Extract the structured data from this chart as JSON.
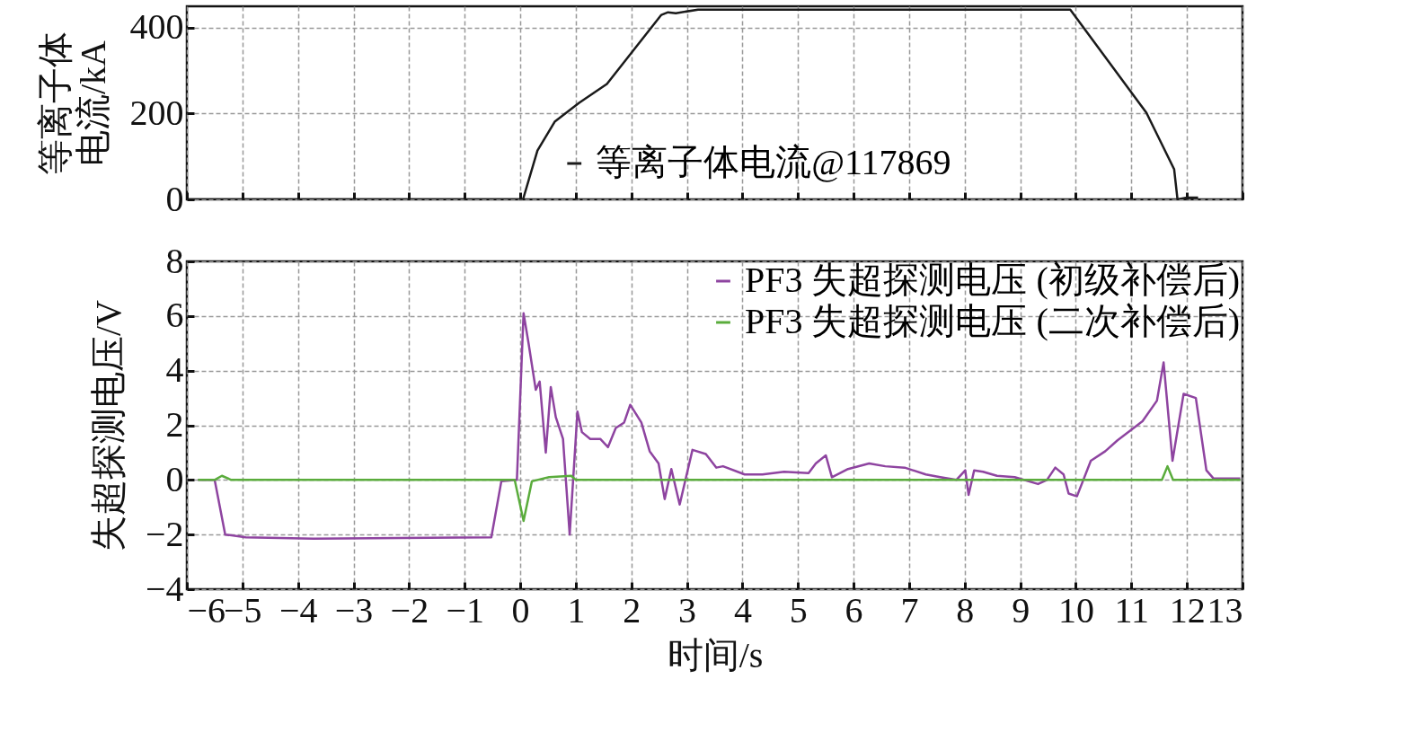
{
  "chart_data": [
    {
      "type": "line",
      "ylabel": "等离子体电流/kA",
      "xlim": [
        -6,
        13
      ],
      "xticks": [
        -6,
        -5,
        -4,
        -3,
        -2,
        -1,
        0,
        1,
        2,
        3,
        4,
        5,
        6,
        7,
        8,
        9,
        10,
        11,
        12,
        13
      ],
      "ylim": [
        0,
        450
      ],
      "yticks": [
        0,
        200,
        400
      ],
      "tick_labels": "y",
      "grid": true,
      "legend": "bottom",
      "series": [
        {
          "name": "等离子体电流@117869",
          "color": "#1a1a1a",
          "x": [
            -6,
            0.05,
            0.31,
            0.62,
            1.06,
            1.56,
            2.54,
            2.66,
            2.8,
            3.2,
            5,
            7,
            9,
            9.9,
            11.27,
            11.77,
            11.83,
            12.0,
            12.2
          ],
          "values": [
            0,
            0,
            114,
            181,
            225,
            269,
            430,
            436,
            434,
            442,
            442,
            442,
            442,
            442,
            202,
            70,
            0,
            4,
            4
          ]
        }
      ]
    },
    {
      "type": "line",
      "xlabel": "时间/s",
      "ylabel": "失超探测电压/V",
      "xlim": [
        -6,
        13
      ],
      "xticks": [
        {
          "value": -6,
          "label": "−6"
        },
        {
          "value": -5,
          "label": "−5"
        },
        {
          "value": -4,
          "label": "−4"
        },
        {
          "value": -3,
          "label": "−3"
        },
        {
          "value": -2,
          "label": "−2"
        },
        {
          "value": -1,
          "label": "−1"
        },
        0,
        1,
        2,
        3,
        4,
        5,
        6,
        7,
        8,
        9,
        10,
        11,
        12,
        13
      ],
      "ylim": [
        -4,
        8
      ],
      "yticks": [
        {
          "value": -4,
          "label": "−4"
        },
        {
          "value": -2,
          "label": "−2"
        },
        0,
        2,
        4,
        6,
        8
      ],
      "grid": true,
      "legend": "top right",
      "series": [
        {
          "name": "PF3 失超探测电压 (初级补偿后)",
          "color": "#8e44a0",
          "x": [
            -5.8,
            -5.5,
            -5.31,
            -4.94,
            -3.72,
            -0.52,
            -0.34,
            -0.06,
            0.06,
            0.15,
            0.28,
            0.35,
            0.46,
            0.55,
            0.64,
            0.77,
            0.89,
            1.03,
            1.11,
            1.26,
            1.44,
            1.58,
            1.72,
            1.87,
            1.98,
            2.18,
            2.33,
            2.49,
            2.6,
            2.72,
            2.87,
            3.1,
            3.34,
            3.53,
            3.65,
            4.04,
            4.36,
            4.75,
            5.19,
            5.32,
            5.5,
            5.61,
            5.9,
            6.28,
            6.57,
            6.92,
            7.3,
            7.56,
            7.85,
            8.01,
            8.07,
            8.17,
            8.33,
            8.58,
            8.9,
            9.32,
            9.48,
            9.63,
            9.78,
            9.87,
            10.02,
            10.27,
            10.53,
            10.75,
            11.01,
            11.2,
            11.46,
            11.58,
            11.74,
            11.94,
            12.16,
            12.35,
            12.48,
            12.96
          ],
          "values": [
            0,
            0,
            -2.0,
            -2.1,
            -2.15,
            -2.1,
            -0.05,
            0,
            6.1,
            5.0,
            3.3,
            3.6,
            1.0,
            3.4,
            2.3,
            1.5,
            -2.0,
            2.5,
            1.75,
            1.5,
            1.5,
            1.2,
            1.9,
            2.1,
            2.75,
            2.1,
            1.05,
            0.6,
            -0.7,
            0.4,
            -0.9,
            1.1,
            0.95,
            0.45,
            0.5,
            0.2,
            0.2,
            0.3,
            0.25,
            0.6,
            0.9,
            0.1,
            0.4,
            0.6,
            0.5,
            0.45,
            0.2,
            0.1,
            0,
            0.35,
            -0.55,
            0.35,
            0.3,
            0.15,
            0.1,
            -0.15,
            0,
            0.45,
            0.2,
            -0.5,
            -0.6,
            0.7,
            1.05,
            1.45,
            1.85,
            2.15,
            2.9,
            4.3,
            0.7,
            3.15,
            3.0,
            0.35,
            0.05,
            0.05
          ]
        },
        {
          "name": "PF3 失超探测电压 (二次补偿后)",
          "color": "#5aac3c",
          "x": [
            -5.8,
            -5.5,
            -5.37,
            -5.2,
            -3,
            -0.1,
            0.06,
            0.21,
            0.52,
            0.92,
            1.0,
            3,
            6,
            9,
            11.55,
            11.65,
            11.75,
            12.96
          ],
          "values": [
            0,
            0,
            0.15,
            0,
            0,
            0,
            -1.5,
            -0.05,
            0.1,
            0.15,
            0,
            0,
            0,
            0,
            0,
            0.5,
            0,
            0
          ]
        }
      ]
    }
  ]
}
